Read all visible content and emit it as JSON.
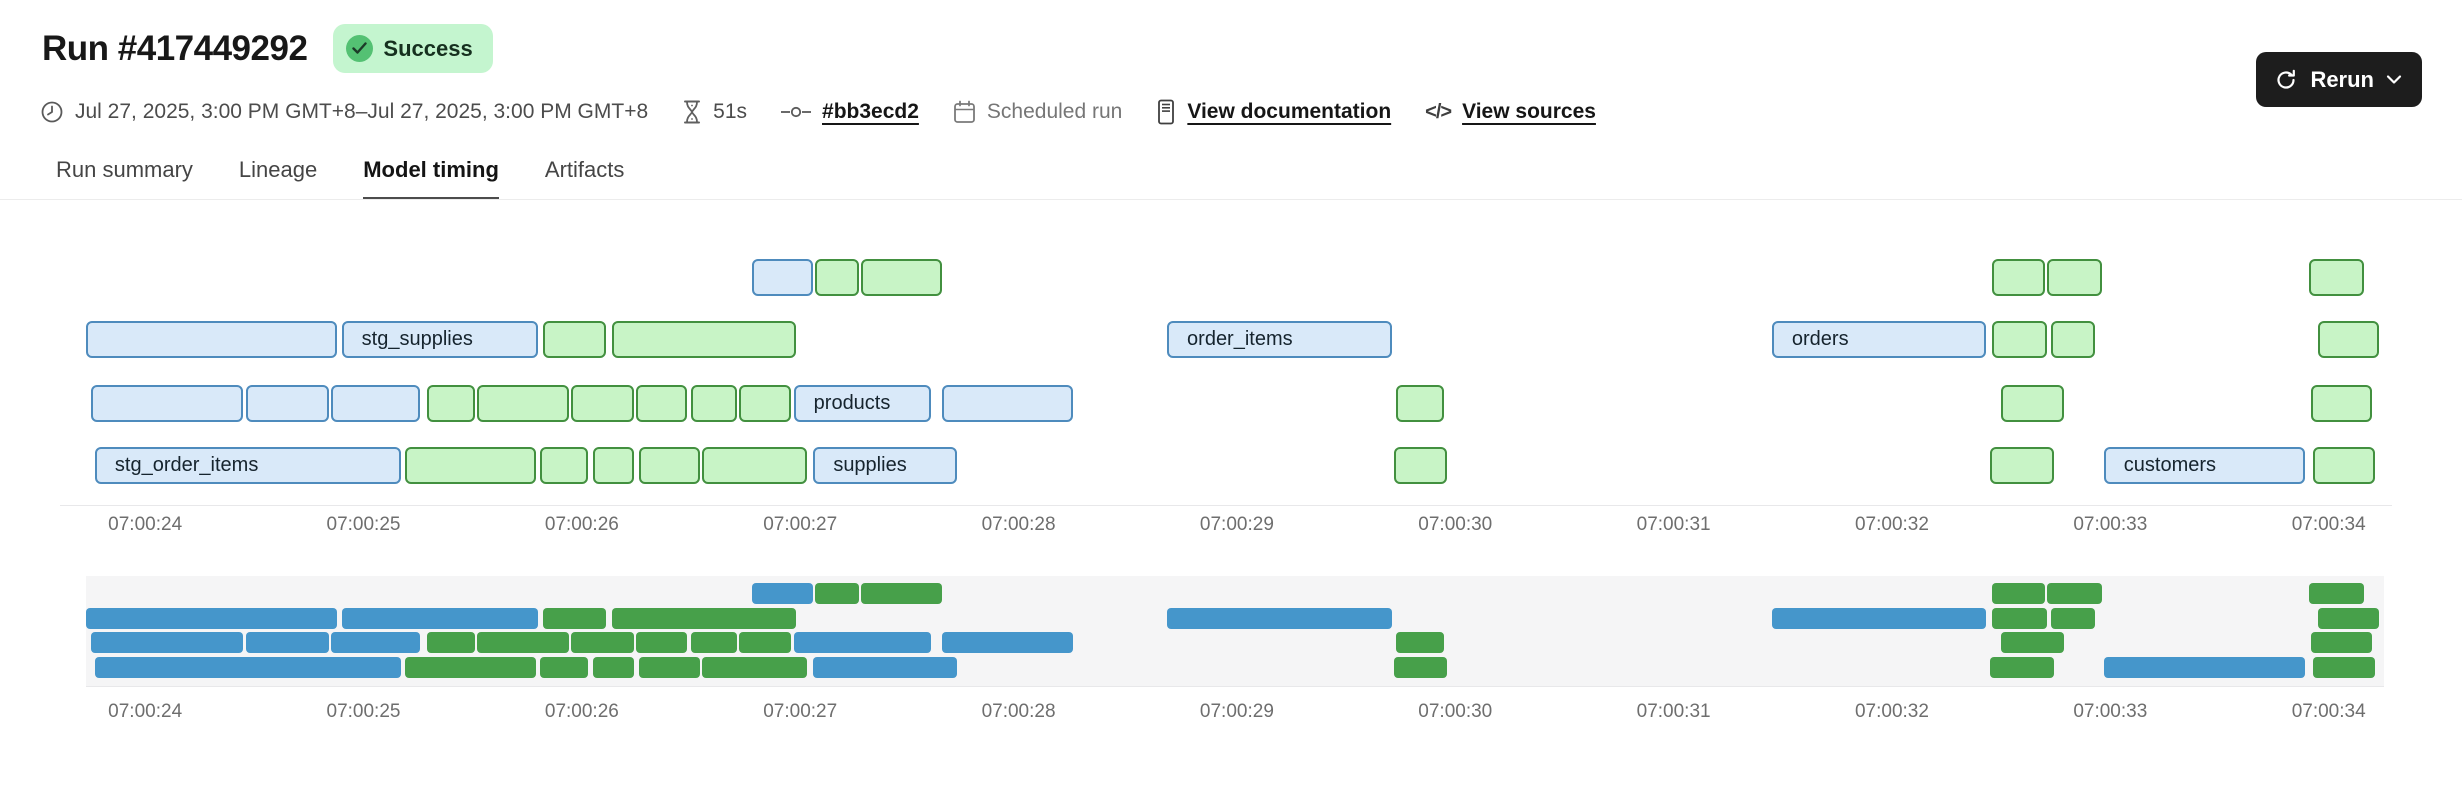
{
  "header": {
    "title": "Run #417449292",
    "status": "Success",
    "meta": {
      "date_range": "Jul 27, 2025, 3:00 PM GMT+8–Jul 27, 2025, 3:00 PM GMT+8",
      "duration": "51s",
      "commit": "#bb3ecd2",
      "trigger": "Scheduled run",
      "docs_link": "View documentation",
      "sources_link": "View sources",
      "code_glyph": "</>"
    },
    "rerun_label": "Rerun"
  },
  "tabs": [
    {
      "label": "Run summary",
      "active": false
    },
    {
      "label": "Lineage",
      "active": false
    },
    {
      "label": "Model timing",
      "active": true
    },
    {
      "label": "Artifacts",
      "active": false
    }
  ],
  "chart_data": {
    "type": "gantt",
    "title": "Model timing",
    "axis": {
      "start_s": 23.61,
      "end_s": 34.29,
      "ticks": [
        {
          "s": 24,
          "label": "07:00:24"
        },
        {
          "s": 25,
          "label": "07:00:25"
        },
        {
          "s": 26,
          "label": "07:00:26"
        },
        {
          "s": 27,
          "label": "07:00:27"
        },
        {
          "s": 28,
          "label": "07:00:28"
        },
        {
          "s": 29,
          "label": "07:00:29"
        },
        {
          "s": 30,
          "label": "07:00:30"
        },
        {
          "s": 31,
          "label": "07:00:31"
        },
        {
          "s": 32,
          "label": "07:00:32"
        },
        {
          "s": 33,
          "label": "07:00:33"
        },
        {
          "s": 34,
          "label": "07:00:34"
        }
      ]
    },
    "colors": {
      "queue_fill": "#d9e9f9",
      "queue_border": "#4e8bbd",
      "run_fill": "#c8f4c6",
      "run_border": "#42903f",
      "queue_solid": "#4596cb",
      "run_solid": "#47a04a"
    },
    "bars": [
      {
        "row": 0,
        "start": 26.78,
        "end": 27.06,
        "kind": "queue",
        "label": ""
      },
      {
        "row": 0,
        "start": 27.07,
        "end": 27.27,
        "kind": "run",
        "label": ""
      },
      {
        "row": 0,
        "start": 27.28,
        "end": 27.65,
        "kind": "run",
        "label": ""
      },
      {
        "row": 0,
        "start": 32.46,
        "end": 32.7,
        "kind": "run",
        "label": ""
      },
      {
        "row": 0,
        "start": 32.71,
        "end": 32.96,
        "kind": "run",
        "label": ""
      },
      {
        "row": 0,
        "start": 33.91,
        "end": 34.16,
        "kind": "run",
        "label": ""
      },
      {
        "row": 1,
        "start": 23.73,
        "end": 24.88,
        "kind": "queue",
        "label": ""
      },
      {
        "row": 1,
        "start": 24.9,
        "end": 25.8,
        "kind": "queue",
        "label": "stg_supplies"
      },
      {
        "row": 1,
        "start": 25.82,
        "end": 26.11,
        "kind": "run",
        "label": ""
      },
      {
        "row": 1,
        "start": 26.14,
        "end": 26.98,
        "kind": "run",
        "label": ""
      },
      {
        "row": 1,
        "start": 28.68,
        "end": 29.71,
        "kind": "queue",
        "label": "order_items"
      },
      {
        "row": 1,
        "start": 31.45,
        "end": 32.43,
        "kind": "queue",
        "label": "orders"
      },
      {
        "row": 1,
        "start": 32.46,
        "end": 32.71,
        "kind": "run",
        "label": ""
      },
      {
        "row": 1,
        "start": 32.73,
        "end": 32.93,
        "kind": "run",
        "label": ""
      },
      {
        "row": 1,
        "start": 33.95,
        "end": 34.23,
        "kind": "run",
        "label": ""
      },
      {
        "row": 2,
        "start": 23.75,
        "end": 24.45,
        "kind": "queue",
        "label": ""
      },
      {
        "row": 2,
        "start": 24.46,
        "end": 24.84,
        "kind": "queue",
        "label": ""
      },
      {
        "row": 2,
        "start": 24.85,
        "end": 25.26,
        "kind": "queue",
        "label": ""
      },
      {
        "row": 2,
        "start": 25.29,
        "end": 25.51,
        "kind": "run",
        "label": ""
      },
      {
        "row": 2,
        "start": 25.52,
        "end": 25.94,
        "kind": "run",
        "label": ""
      },
      {
        "row": 2,
        "start": 25.95,
        "end": 26.24,
        "kind": "run",
        "label": ""
      },
      {
        "row": 2,
        "start": 26.25,
        "end": 26.48,
        "kind": "run",
        "label": ""
      },
      {
        "row": 2,
        "start": 26.5,
        "end": 26.71,
        "kind": "run",
        "label": ""
      },
      {
        "row": 2,
        "start": 26.72,
        "end": 26.96,
        "kind": "run",
        "label": ""
      },
      {
        "row": 2,
        "start": 26.97,
        "end": 27.6,
        "kind": "queue",
        "label": "products"
      },
      {
        "row": 2,
        "start": 27.65,
        "end": 28.25,
        "kind": "queue",
        "label": ""
      },
      {
        "row": 2,
        "start": 29.73,
        "end": 29.95,
        "kind": "run",
        "label": ""
      },
      {
        "row": 2,
        "start": 32.5,
        "end": 32.79,
        "kind": "run",
        "label": ""
      },
      {
        "row": 2,
        "start": 33.92,
        "end": 34.2,
        "kind": "run",
        "label": ""
      },
      {
        "row": 3,
        "start": 23.77,
        "end": 25.17,
        "kind": "queue",
        "label": "stg_order_items"
      },
      {
        "row": 3,
        "start": 25.19,
        "end": 25.79,
        "kind": "run",
        "label": ""
      },
      {
        "row": 3,
        "start": 25.81,
        "end": 26.03,
        "kind": "run",
        "label": ""
      },
      {
        "row": 3,
        "start": 26.05,
        "end": 26.24,
        "kind": "run",
        "label": ""
      },
      {
        "row": 3,
        "start": 26.26,
        "end": 26.54,
        "kind": "run",
        "label": ""
      },
      {
        "row": 3,
        "start": 26.55,
        "end": 27.03,
        "kind": "run",
        "label": ""
      },
      {
        "row": 3,
        "start": 27.06,
        "end": 27.72,
        "kind": "queue",
        "label": "supplies"
      },
      {
        "row": 3,
        "start": 29.72,
        "end": 29.96,
        "kind": "run",
        "label": ""
      },
      {
        "row": 3,
        "start": 32.45,
        "end": 32.74,
        "kind": "run",
        "label": ""
      },
      {
        "row": 3,
        "start": 32.97,
        "end": 33.89,
        "kind": "queue",
        "label": "customers"
      },
      {
        "row": 3,
        "start": 33.93,
        "end": 34.21,
        "kind": "run",
        "label": ""
      }
    ]
  }
}
